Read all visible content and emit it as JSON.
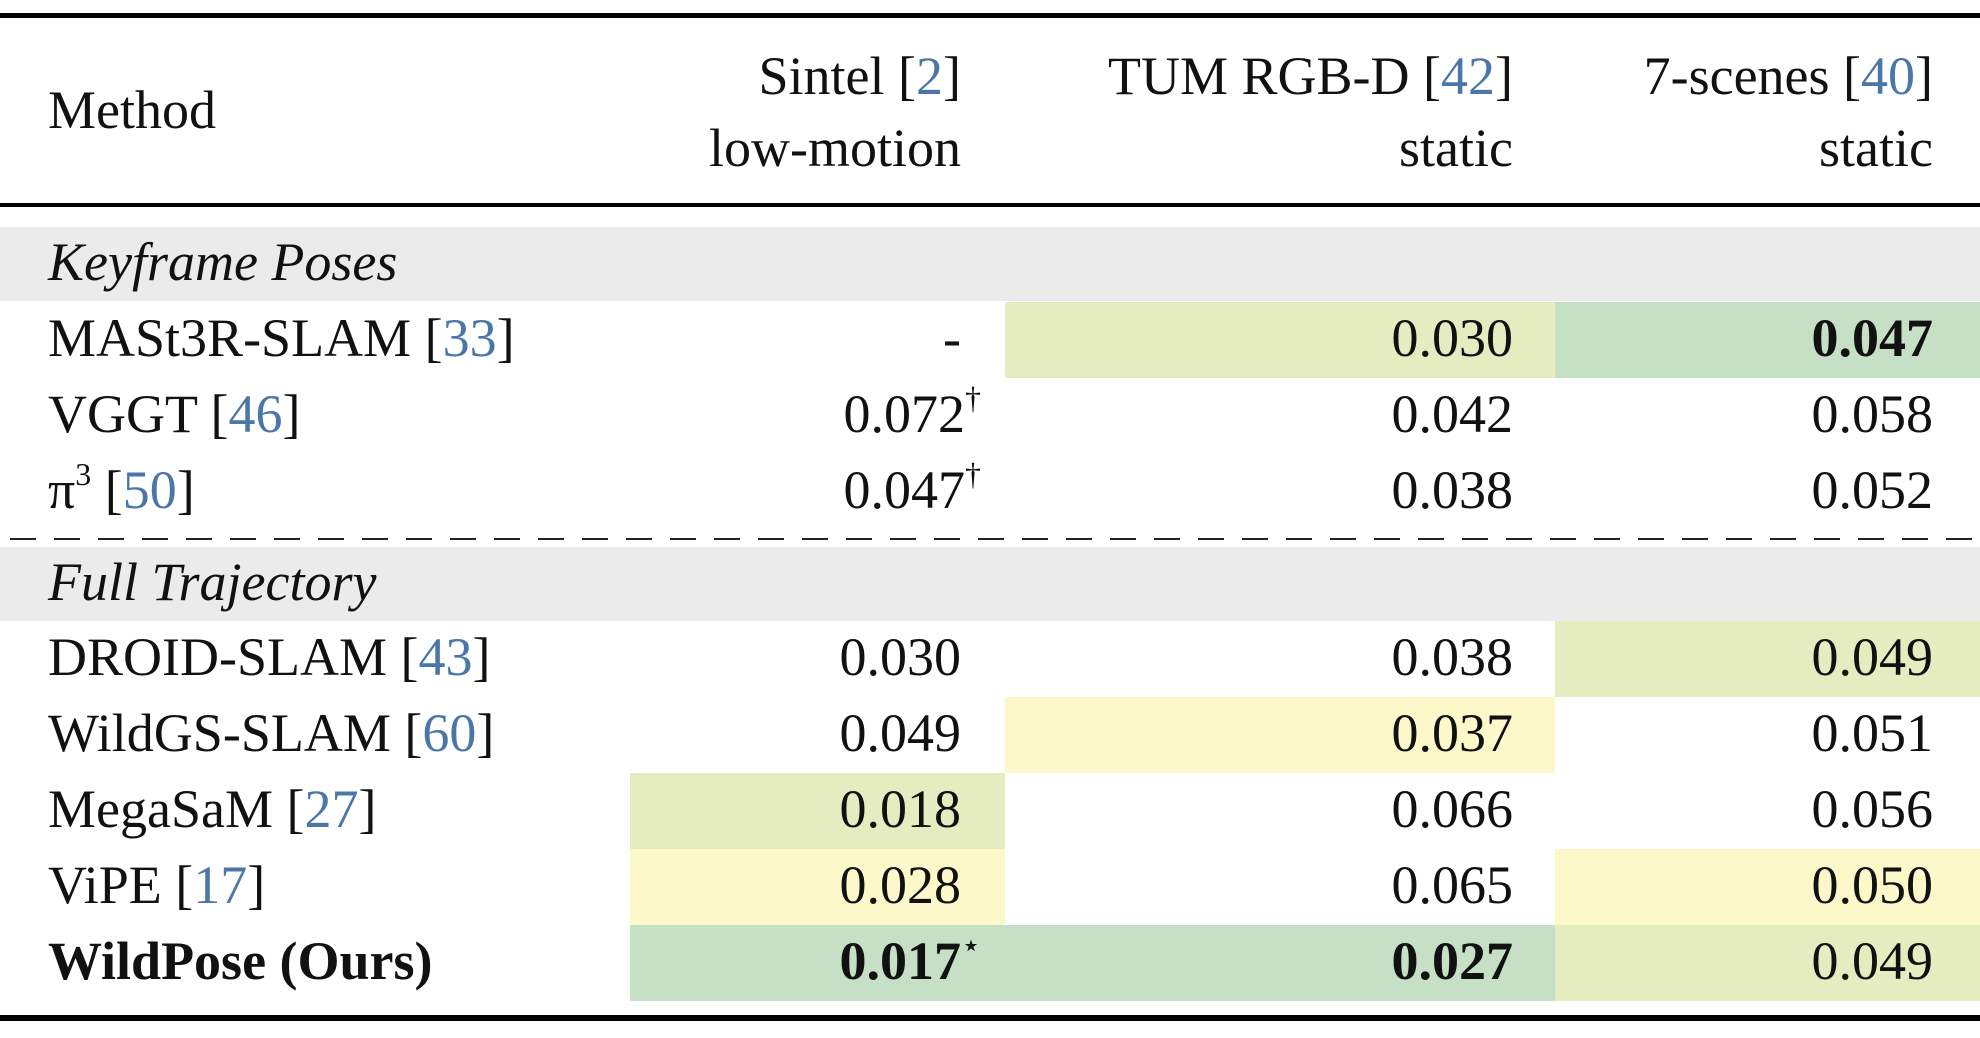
{
  "colors": {
    "best": "#c6e0c6",
    "second": "#e5ecc0",
    "third": "#fcf8c9",
    "section_bg": "#ebebeb",
    "citation": "#4a76a8"
  },
  "header": {
    "method": "Method",
    "col1": {
      "name": "Sintel [",
      "ref": "2",
      "close": "]",
      "sub": "low-motion"
    },
    "col2": {
      "name": "TUM RGB-D [",
      "ref": "42",
      "close": "]",
      "sub": "static"
    },
    "col3": {
      "name": "7-scenes [",
      "ref": "40",
      "close": "]",
      "sub": "static"
    }
  },
  "sections": {
    "keyframe": "Keyframe Poses",
    "full": "Full Trajectory"
  },
  "rows": {
    "mast3r": {
      "name": "MASt3R-SLAM [",
      "ref": "33",
      "close": "]",
      "v1": "-",
      "v2": "0.030",
      "v3": "0.047"
    },
    "vggt": {
      "name": "VGGT [",
      "ref": "46",
      "close": "]",
      "v1": "0.072",
      "v1_mark": "†",
      "v2": "0.042",
      "v3": "0.058"
    },
    "pi3": {
      "name": "π",
      "name_sup": "3",
      "name_rest": " [",
      "ref": "50",
      "close": "]",
      "v1": "0.047",
      "v1_mark": "†",
      "v2": "0.038",
      "v3": "0.052"
    },
    "droid": {
      "name": "DROID-SLAM [",
      "ref": "43",
      "close": "]",
      "v1": "0.030",
      "v2": "0.038",
      "v3": "0.049"
    },
    "wildgs": {
      "name": "WildGS-SLAM [",
      "ref": "60",
      "close": "]",
      "v1": "0.049",
      "v2": "0.037",
      "v3": "0.051"
    },
    "megasam": {
      "name": "MegaSaM [",
      "ref": "27",
      "close": "]",
      "v1": "0.018",
      "v2": "0.066",
      "v3": "0.056"
    },
    "vipe": {
      "name": "ViPE [",
      "ref": "17",
      "close": "]",
      "v1": "0.028",
      "v2": "0.065",
      "v3": "0.050"
    },
    "wildpose": {
      "name": "WildPose (Ours)",
      "v1": "0.017",
      "v1_mark": "⋆",
      "v2": "0.027",
      "v3": "0.049"
    }
  }
}
